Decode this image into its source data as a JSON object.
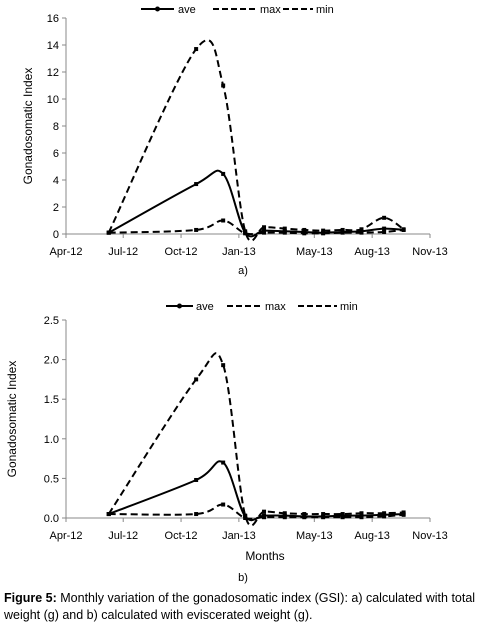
{
  "chart_data": [
    {
      "type": "line",
      "panel_label": "a)",
      "ylabel": "Gonadosomatic Index",
      "xlabel": "",
      "ylim": [
        0,
        16
      ],
      "yticks": [
        0,
        2,
        4,
        6,
        8,
        10,
        12,
        14,
        16
      ],
      "ytick_labels": [
        "0",
        "2",
        "4",
        "6",
        "8",
        "10",
        "12",
        "14",
        "16"
      ],
      "xlim": [
        "2012-04-01",
        "2013-11-01"
      ],
      "xticks": [
        "2012-04-01",
        "2012-07-01",
        "2012-10-01",
        "2013-01-01",
        "2013-05-01",
        "2013-08-01",
        "2013-11-01"
      ],
      "xtick_labels": [
        "Apr-12",
        "Jul-12",
        "Oct-12",
        "Jan-13",
        "May-13",
        "Aug-13",
        "Nov-13"
      ],
      "legend_position": "top",
      "grid": false,
      "smooth": true,
      "series": [
        {
          "name": "ave",
          "style": "solid",
          "points": [
            [
              "2012-06-08",
              0.1
            ],
            [
              "2012-10-25",
              3.7
            ],
            [
              "2012-12-07",
              4.45
            ],
            [
              "2013-01-11",
              0.1
            ],
            [
              "2013-02-10",
              0.25
            ],
            [
              "2013-03-15",
              0.2
            ],
            [
              "2013-04-15",
              0.15
            ],
            [
              "2013-05-15",
              0.1
            ],
            [
              "2013-06-15",
              0.15
            ],
            [
              "2013-07-15",
              0.2
            ],
            [
              "2013-08-20",
              0.4
            ],
            [
              "2013-09-20",
              0.3
            ]
          ]
        },
        {
          "name": "max",
          "style": "dashed",
          "points": [
            [
              "2012-06-08",
              0.1
            ],
            [
              "2012-10-25",
              13.7
            ],
            [
              "2012-12-07",
              11.0
            ],
            [
              "2013-01-11",
              0.2
            ],
            [
              "2013-02-10",
              0.5
            ],
            [
              "2013-03-15",
              0.4
            ],
            [
              "2013-04-15",
              0.3
            ],
            [
              "2013-05-15",
              0.25
            ],
            [
              "2013-06-15",
              0.3
            ],
            [
              "2013-07-15",
              0.35
            ],
            [
              "2013-08-20",
              1.2
            ],
            [
              "2013-09-20",
              0.35
            ]
          ]
        },
        {
          "name": "min",
          "style": "dashed",
          "points": [
            [
              "2012-06-08",
              0.1
            ],
            [
              "2012-10-25",
              0.3
            ],
            [
              "2012-12-07",
              1.0
            ],
            [
              "2013-01-11",
              0.05
            ],
            [
              "2013-02-10",
              0.1
            ],
            [
              "2013-03-15",
              0.1
            ],
            [
              "2013-04-15",
              0.05
            ],
            [
              "2013-05-15",
              0.05
            ],
            [
              "2013-06-15",
              0.1
            ],
            [
              "2013-07-15",
              0.1
            ],
            [
              "2013-08-20",
              0.15
            ],
            [
              "2013-09-20",
              0.3
            ]
          ]
        }
      ]
    },
    {
      "type": "line",
      "panel_label": "b)",
      "ylabel": "Gonadosomatic Index",
      "xlabel": "Months",
      "ylim": [
        0,
        2.5
      ],
      "yticks": [
        0,
        0.5,
        1.0,
        1.5,
        2.0,
        2.5
      ],
      "ytick_labels": [
        "0.0",
        "0.5",
        "1.0",
        "1.5",
        "2.0",
        "2.5"
      ],
      "xlim": [
        "2012-04-01",
        "2013-11-01"
      ],
      "xticks": [
        "2012-04-01",
        "2012-07-01",
        "2012-10-01",
        "2013-01-01",
        "2013-05-01",
        "2013-08-01",
        "2013-11-01"
      ],
      "xtick_labels": [
        "Apr-12",
        "Jul-12",
        "Oct-12",
        "Jan-13",
        "May-13",
        "Aug-13",
        "Nov-13"
      ],
      "legend_position": "top",
      "grid": false,
      "smooth": true,
      "series": [
        {
          "name": "ave",
          "style": "solid",
          "points": [
            [
              "2012-06-08",
              0.05
            ],
            [
              "2012-10-25",
              0.48
            ],
            [
              "2012-12-07",
              0.7
            ],
            [
              "2013-01-11",
              0.02
            ],
            [
              "2013-02-10",
              0.03
            ],
            [
              "2013-03-15",
              0.03
            ],
            [
              "2013-04-15",
              0.02
            ],
            [
              "2013-05-15",
              0.02
            ],
            [
              "2013-06-15",
              0.03
            ],
            [
              "2013-07-15",
              0.03
            ],
            [
              "2013-08-20",
              0.04
            ],
            [
              "2013-09-20",
              0.05
            ]
          ]
        },
        {
          "name": "max",
          "style": "dashed",
          "points": [
            [
              "2012-06-08",
              0.05
            ],
            [
              "2012-10-25",
              1.75
            ],
            [
              "2012-12-07",
              1.93
            ],
            [
              "2013-01-11",
              0.03
            ],
            [
              "2013-02-10",
              0.08
            ],
            [
              "2013-03-15",
              0.06
            ],
            [
              "2013-04-15",
              0.05
            ],
            [
              "2013-05-15",
              0.05
            ],
            [
              "2013-06-15",
              0.05
            ],
            [
              "2013-07-15",
              0.06
            ],
            [
              "2013-08-20",
              0.06
            ],
            [
              "2013-09-20",
              0.07
            ]
          ]
        },
        {
          "name": "min",
          "style": "dashed",
          "points": [
            [
              "2012-06-08",
              0.05
            ],
            [
              "2012-10-25",
              0.05
            ],
            [
              "2012-12-07",
              0.17
            ],
            [
              "2013-01-11",
              0.0
            ],
            [
              "2013-02-10",
              0.01
            ],
            [
              "2013-03-15",
              0.01
            ],
            [
              "2013-04-15",
              0.01
            ],
            [
              "2013-05-15",
              0.01
            ],
            [
              "2013-06-15",
              0.01
            ],
            [
              "2013-07-15",
              0.01
            ],
            [
              "2013-08-20",
              0.02
            ],
            [
              "2013-09-20",
              0.04
            ]
          ]
        }
      ]
    }
  ],
  "caption": {
    "label": "Figure 5:",
    "text": " Monthly variation of the gonadosomatic index (GSI): a) calculated with total weight (g) and b) calculated with eviscerated weight (g)."
  }
}
